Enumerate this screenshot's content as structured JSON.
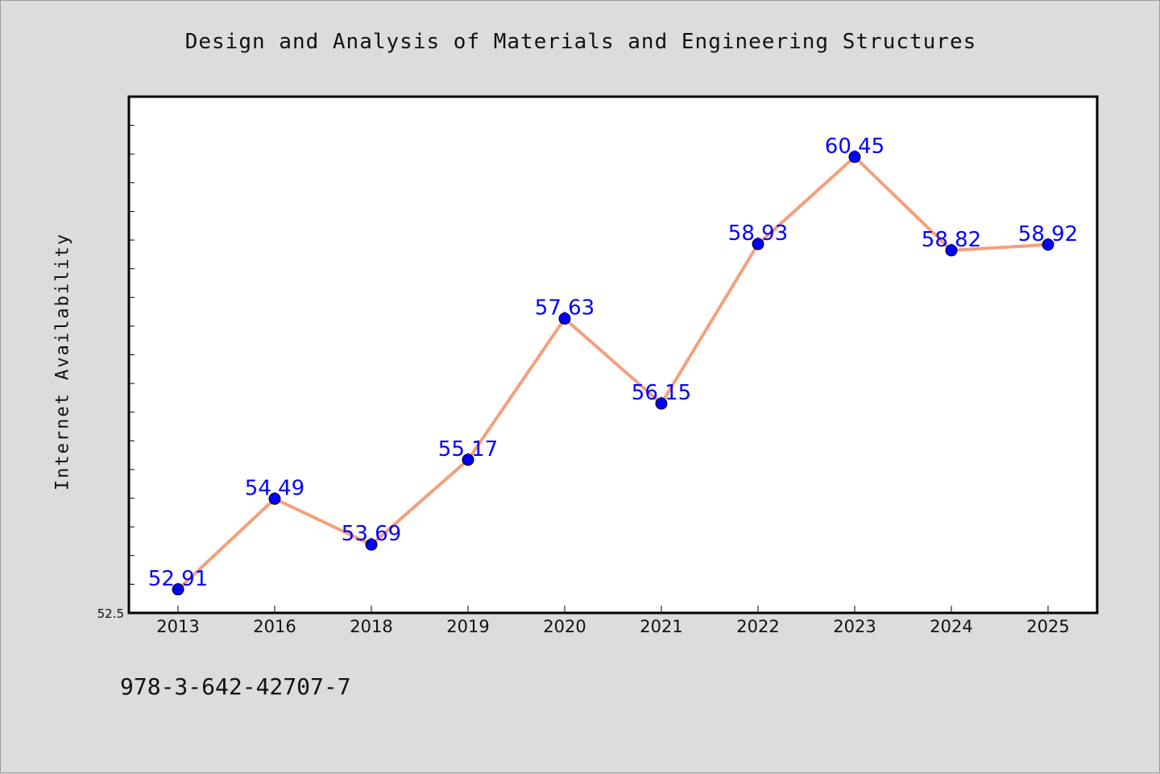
{
  "chart_data": {
    "type": "line",
    "title": "Design and Analysis of Materials and Engineering Structures",
    "xlabel": "",
    "ylabel": "Internet Availability",
    "categories": [
      "2013",
      "2016",
      "2018",
      "2019",
      "2020",
      "2021",
      "2022",
      "2023",
      "2024",
      "2025"
    ],
    "series": [
      {
        "values": [
          52.91,
          54.49,
          53.69,
          55.17,
          57.63,
          56.15,
          58.93,
          60.45,
          58.82,
          58.92
        ],
        "data_labels": [
          "52.91",
          "54.49",
          "53.69",
          "55.17",
          "57.63",
          "56.15",
          "58.93",
          "60.45",
          "58.82",
          "58.92"
        ],
        "line_color": "#f4a07c",
        "marker_color": "#0000ff"
      }
    ],
    "ylim": [
      52.5,
      61.5
    ],
    "ytick_labels": [
      "52.5"
    ],
    "grid": false,
    "legend": "none"
  },
  "annotation": "978-3-642-42707-7",
  "colors": {
    "background": "#dcdcdc",
    "plot_area": "#ffffff",
    "label_text": "#0000ff"
  }
}
